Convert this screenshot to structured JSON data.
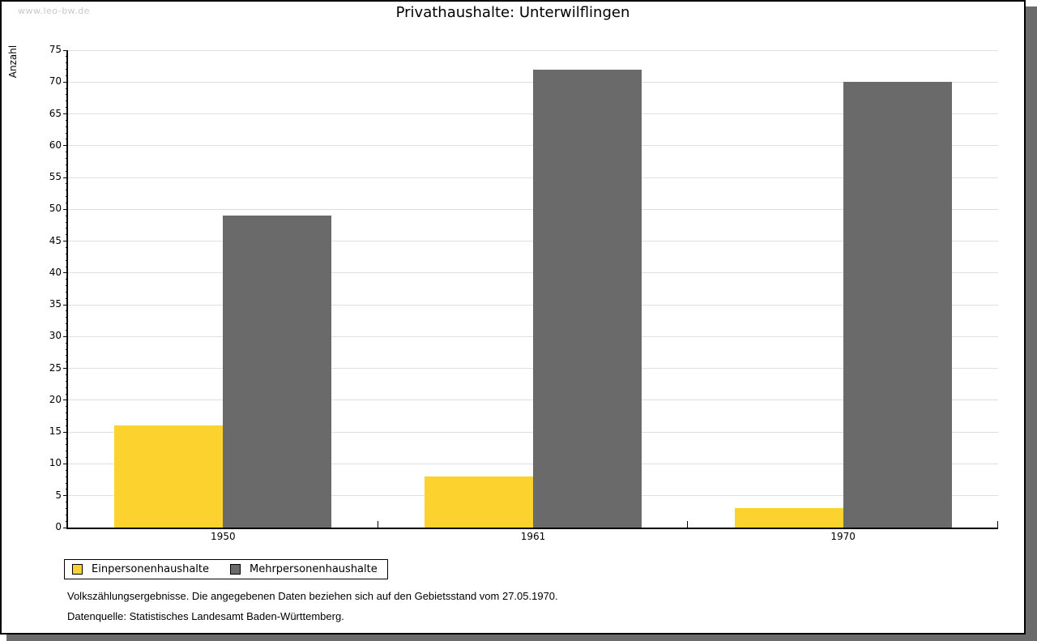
{
  "watermark": "www.leo-bw.de",
  "title": "Privathaushalte: Unterwilflingen",
  "chart_data": {
    "type": "bar",
    "title": "Privathaushalte: Unterwilflingen",
    "categories": [
      "1950",
      "1961",
      "1970"
    ],
    "series": [
      {
        "name": "Einpersonenhaushalte",
        "color": "#fcd22f",
        "values": [
          16,
          8,
          3
        ]
      },
      {
        "name": "Mehrpersonenhaushalte",
        "color": "#6a6a6a",
        "values": [
          49,
          72,
          70
        ]
      }
    ],
    "xlabel": "",
    "ylabel": "Anzahl",
    "ylim": [
      0,
      75
    ],
    "ytick_step": 5,
    "yminor_step": 1,
    "grid": true,
    "legend_position": "bottom-left"
  },
  "legend": {
    "items": [
      {
        "label": "Einpersonenhaushalte",
        "color": "#fcd22f"
      },
      {
        "label": "Mehrpersonenhaushalte",
        "color": "#6a6a6a"
      }
    ]
  },
  "footnotes": {
    "line1": "Volkszählungsergebnisse. Die angegebenen Daten beziehen sich auf den Gebietsstand vom 27.05.1970.",
    "line2": "Datenquelle: Statistisches Landesamt Baden-Württemberg."
  },
  "colors": {
    "series1": "#fcd22f",
    "series2": "#6a6a6a",
    "gridline": "#e0e0e0",
    "shadow": "#6b6b6b",
    "watermark": "#c9c9c9"
  }
}
